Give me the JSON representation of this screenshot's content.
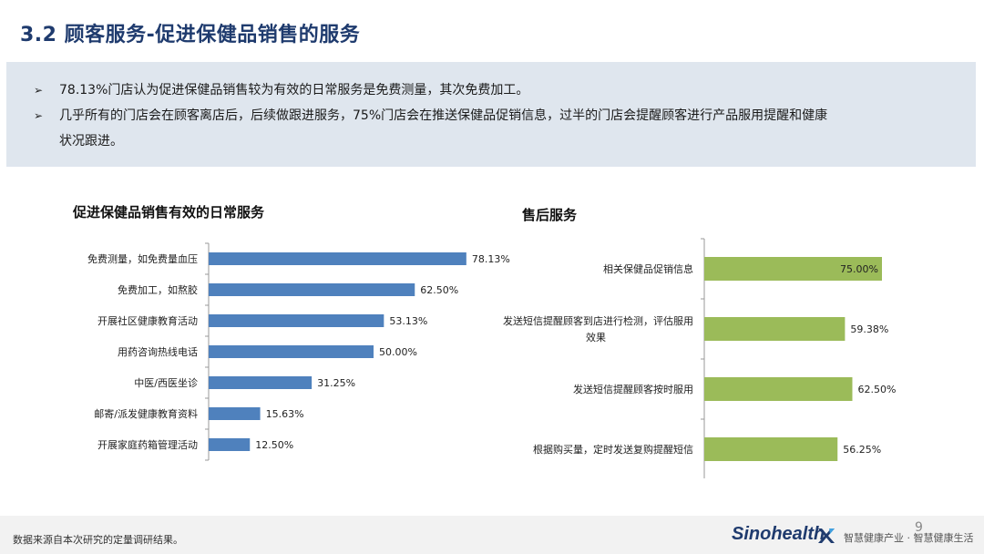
{
  "page": {
    "title": "3.2 顾客服务-促进保健品销售的服务",
    "bullets": [
      "78.13%门店认为促进保健品销售较为有效的日常服务是免费测量，其次免费加工。",
      "几乎所有的门店会在顾客离店后，后续做跟进服务，75%门店会在推送保健品促销信息，过半的门店会提醒顾客进行产品服用提醒和健康",
      "状况跟进。"
    ],
    "bullet_marker": "➢"
  },
  "chart_data": [
    {
      "type": "bar",
      "orientation": "horizontal",
      "title": "促进保健品销售有效的日常服务",
      "categories": [
        "免费测量，如免费量血压",
        "免费加工，如熬胶",
        "开展社区健康教育活动",
        "用药咨询热线电话",
        "中医/西医坐诊",
        "邮寄/派发健康教育资料",
        "开展家庭药箱管理活动"
      ],
      "values": [
        78.13,
        62.5,
        53.13,
        50.0,
        31.25,
        15.63,
        12.5
      ],
      "labels": [
        "78.13%",
        "62.50%",
        "53.13%",
        "50.00%",
        "31.25%",
        "15.63%",
        "12.50%"
      ],
      "xlim": [
        0,
        100
      ],
      "color": "#4f81bd"
    },
    {
      "type": "bar",
      "orientation": "horizontal",
      "title": "售后服务",
      "categories": [
        [
          "相关保健品促销信息"
        ],
        [
          "发送短信提醒顾客到店进行检测，评估服用",
          "效果"
        ],
        [
          "发送短信提醒顾客按时服用"
        ],
        [
          "根据购买量，定时发送复购提醒短信"
        ]
      ],
      "values": [
        75.0,
        59.38,
        62.5,
        56.25
      ],
      "labels": [
        "75.00%",
        "59.38%",
        "62.50%",
        "56.25%"
      ],
      "xlim": [
        0,
        100
      ],
      "color": "#9bbb59"
    }
  ],
  "footer": {
    "source": "数据来源自本次研究的定量调研结果。",
    "logo": "Sinohealth",
    "tagline": "智慧健康产业 · 智慧健康生活",
    "page_number": "9",
    "brand_color": "#1f3b6e",
    "logo_icon": "sinohealth-x-mark-icon"
  }
}
